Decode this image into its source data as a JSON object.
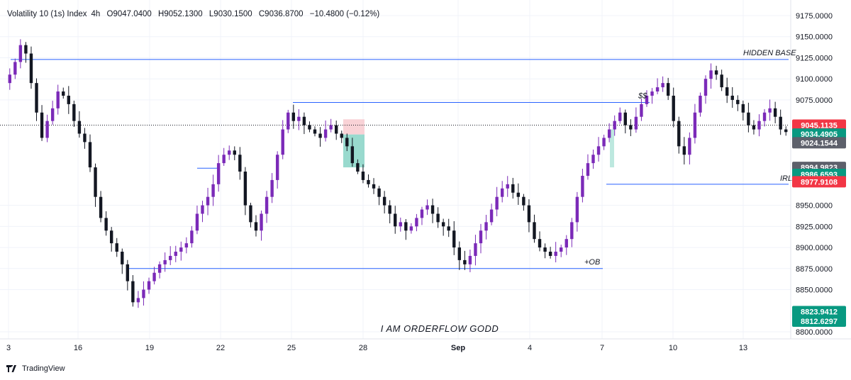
{
  "header": {
    "symbol": "Volatility 10 (1s) Index",
    "interval": "4h",
    "open": "O9047.0400",
    "high": "H9052.1300",
    "low": "L9030.1500",
    "close": "C9036.8700",
    "change": "−10.4800 (−0.12%)"
  },
  "footer": {
    "brand": "TradingView"
  },
  "colors": {
    "bull": "#7b2ab8",
    "bear": "#131722",
    "level_line": "#2962ff",
    "badge_red": "#f23645",
    "badge_green": "#089981",
    "badge_gray": "#5d606b"
  },
  "chart_data": {
    "type": "candlestick",
    "y_range": [
      8800,
      9180
    ],
    "y_ticks": [
      {
        "value": 9175,
        "label": "9175.0000"
      },
      {
        "value": 9150,
        "label": "9150.0000"
      },
      {
        "value": 9125,
        "label": "9125.0000"
      },
      {
        "value": 9100,
        "label": "9100.0000"
      },
      {
        "value": 9075,
        "label": "9075.0000"
      },
      {
        "value": 8950,
        "label": "8950.0000"
      },
      {
        "value": 8925,
        "label": "8925.0000"
      },
      {
        "value": 8900,
        "label": "8900.0000"
      },
      {
        "value": 8875,
        "label": "8875.0000"
      },
      {
        "value": 8850,
        "label": "8850.0000"
      },
      {
        "value": 8800,
        "label": "8800.0000"
      }
    ],
    "x_ticks": [
      {
        "label": "3",
        "bold": false
      },
      {
        "label": "16",
        "bold": false
      },
      {
        "label": "19",
        "bold": false
      },
      {
        "label": "22",
        "bold": false
      },
      {
        "label": "25",
        "bold": false
      },
      {
        "label": "28",
        "bold": false
      },
      {
        "label": "Sep",
        "bold": true
      },
      {
        "label": "4",
        "bold": false
      },
      {
        "label": "7",
        "bold": false
      },
      {
        "label": "10",
        "bold": false
      },
      {
        "label": "13",
        "bold": false
      }
    ],
    "close_path": [
      9105,
      9120,
      9140,
      9130,
      9095,
      9060,
      9030,
      9050,
      9065,
      9085,
      9080,
      9070,
      9050,
      9035,
      9025,
      8995,
      8960,
      8935,
      8920,
      8905,
      8895,
      8880,
      8860,
      8835,
      8840,
      8850,
      8860,
      8870,
      8880,
      8885,
      8890,
      8895,
      8900,
      8905,
      8920,
      8940,
      8950,
      8960,
      8975,
      9000,
      9010,
      9015,
      9010,
      8990,
      8950,
      8930,
      8920,
      8940,
      8960,
      8980,
      9010,
      9040,
      9060,
      9050,
      9055,
      9045,
      9040,
      9035,
      9030,
      9040,
      9045,
      9035,
      9030,
      9020,
      9000,
      8990,
      8980,
      8975,
      8970,
      8960,
      8950,
      8940,
      8925,
      8930,
      8920,
      8925,
      8935,
      8945,
      8950,
      8940,
      8930,
      8925,
      8920,
      8900,
      8885,
      8880,
      8890,
      8905,
      8920,
      8930,
      8945,
      8960,
      8970,
      8975,
      8965,
      8960,
      8950,
      8930,
      8910,
      8900,
      8895,
      8890,
      8895,
      8900,
      8910,
      8930,
      8960,
      8985,
      9000,
      9010,
      9020,
      9030,
      9040,
      9050,
      9060,
      9045,
      9040,
      9055,
      9070,
      9080,
      9085,
      9090,
      9095,
      9080,
      9050,
      9020,
      9010,
      9030,
      9060,
      9080,
      9100,
      9110,
      9105,
      9090,
      9080,
      9075,
      9070,
      9060,
      9045,
      9040,
      9050,
      9060,
      9065,
      9055,
      9040,
      9036.87
    ],
    "levels": [
      {
        "value": 9123,
        "label": "HIDDEN BASE"
      },
      {
        "value": 9072,
        "label": "$$"
      },
      {
        "value": 8975,
        "label": "IRL"
      },
      {
        "value": 8875,
        "label": "+OB"
      },
      {
        "value": 8994,
        "label": ""
      }
    ],
    "annotation": "I AM ORDERFLOW GODD",
    "badges": [
      {
        "label": "9045.1135",
        "value": 9045.1135,
        "color": "red"
      },
      {
        "label": "9034.4905",
        "value": 9034.4905,
        "color": "green"
      },
      {
        "label": "9024.1544",
        "value": 9024.1544,
        "color": "gray"
      },
      {
        "label": "8994.9823",
        "value": 8994.9823,
        "color": "gray"
      },
      {
        "label": "8986.6593",
        "value": 8986.6593,
        "color": "green"
      },
      {
        "label": "8977.9108",
        "value": 8977.9108,
        "color": "red"
      },
      {
        "label": "8823.9412",
        "value": 8823.9412,
        "color": "green"
      },
      {
        "label": "8812.6297",
        "value": 8812.6297,
        "color": "green"
      }
    ]
  }
}
